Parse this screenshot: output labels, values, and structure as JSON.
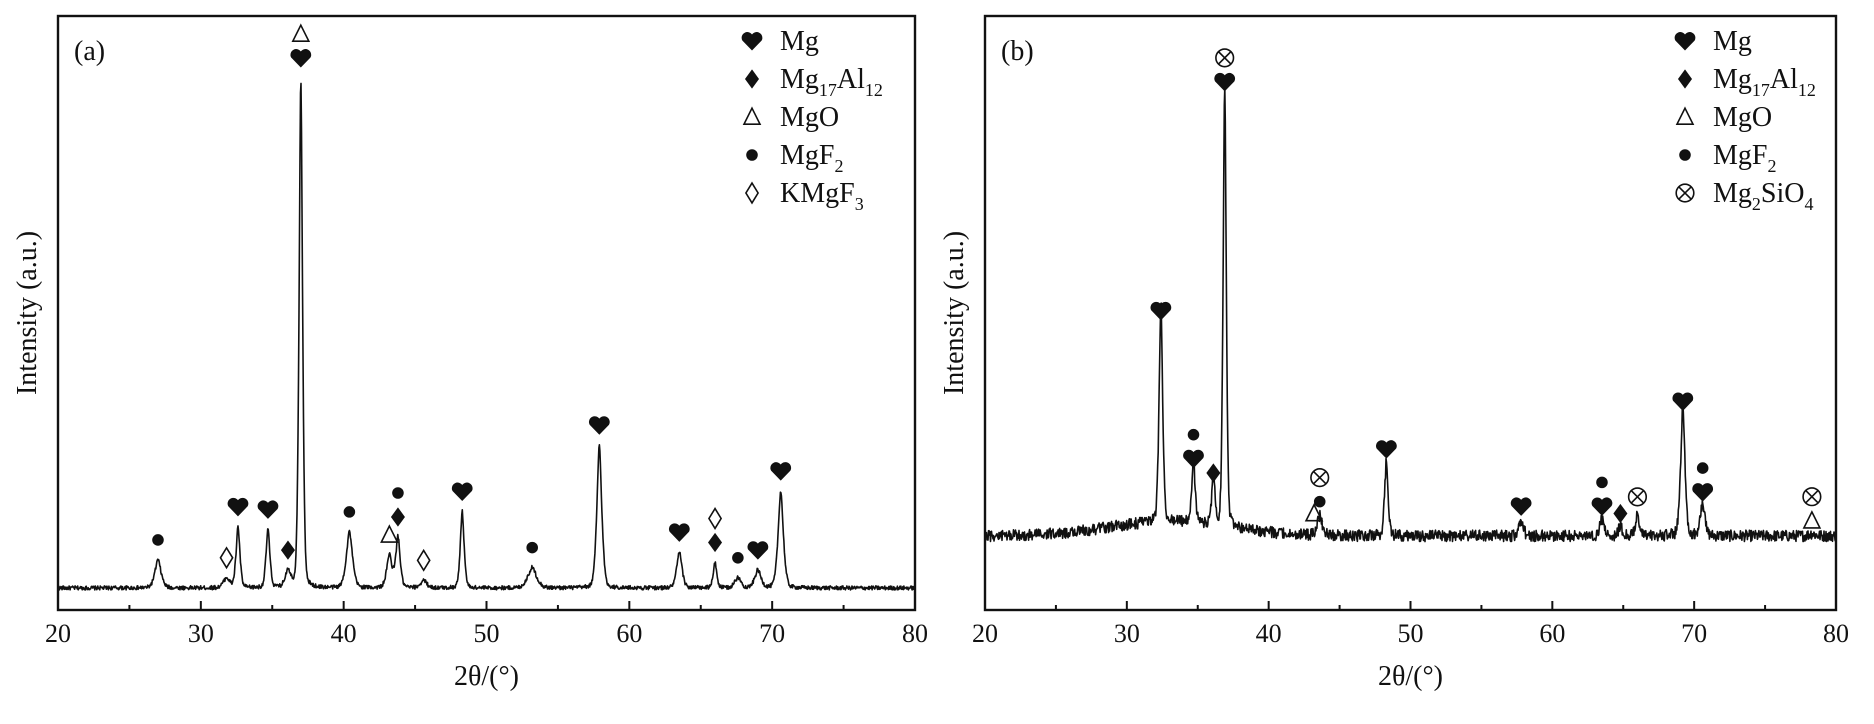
{
  "colors": {
    "line": "#111111",
    "background": "#ffffff"
  },
  "chart_data": [
    {
      "type": "line",
      "panel_label": "(a)",
      "xlabel": "2θ/(°)",
      "ylabel": "Intensity (a.u.)",
      "xlim": [
        20,
        80
      ],
      "xticks": [
        20,
        30,
        40,
        50,
        60,
        70,
        80
      ],
      "y_units": "relative intensity (arbitrary, baseline 0, tallest peak 1)",
      "grid": false,
      "legend_position": "top-right",
      "legend": [
        {
          "symbol": "heart",
          "label": "Mg"
        },
        {
          "symbol": "diamond",
          "label": "Mg17Al12"
        },
        {
          "symbol": "triangle",
          "label": "MgO"
        },
        {
          "symbol": "circle",
          "label": "MgF2"
        },
        {
          "symbol": "open-diamond",
          "label": "KMgF3"
        }
      ],
      "baseline": 0.0,
      "noise": 0.004,
      "peaks": [
        {
          "x": 27.0,
          "y": 0.055,
          "w": 0.35
        },
        {
          "x": 31.8,
          "y": 0.02,
          "w": 0.35
        },
        {
          "x": 32.6,
          "y": 0.12,
          "w": 0.22
        },
        {
          "x": 34.7,
          "y": 0.115,
          "w": 0.22
        },
        {
          "x": 36.1,
          "y": 0.035,
          "w": 0.3
        },
        {
          "x": 37.0,
          "y": 1.0,
          "w": 0.2
        },
        {
          "x": 40.4,
          "y": 0.11,
          "w": 0.35
        },
        {
          "x": 43.2,
          "y": 0.065,
          "w": 0.3
        },
        {
          "x": 43.8,
          "y": 0.1,
          "w": 0.25
        },
        {
          "x": 45.6,
          "y": 0.015,
          "w": 0.35
        },
        {
          "x": 48.3,
          "y": 0.15,
          "w": 0.22
        },
        {
          "x": 53.2,
          "y": 0.04,
          "w": 0.5
        },
        {
          "x": 57.9,
          "y": 0.28,
          "w": 0.28
        },
        {
          "x": 63.5,
          "y": 0.07,
          "w": 0.3
        },
        {
          "x": 66.0,
          "y": 0.05,
          "w": 0.2
        },
        {
          "x": 67.6,
          "y": 0.02,
          "w": 0.35
        },
        {
          "x": 69.0,
          "y": 0.035,
          "w": 0.35
        },
        {
          "x": 70.6,
          "y": 0.19,
          "w": 0.3
        }
      ],
      "peak_markers": [
        {
          "x": 27.0,
          "y": 0.055,
          "symbols": [
            "circle"
          ]
        },
        {
          "x": 31.8,
          "y": 0.02,
          "symbols": [
            "open-diamond"
          ]
        },
        {
          "x": 32.6,
          "y": 0.12,
          "symbols": [
            "heart"
          ]
        },
        {
          "x": 34.7,
          "y": 0.115,
          "symbols": [
            "heart"
          ]
        },
        {
          "x": 36.1,
          "y": 0.035,
          "symbols": [
            "diamond"
          ]
        },
        {
          "x": 37.0,
          "y": 1.0,
          "symbols": [
            "heart",
            "triangle"
          ]
        },
        {
          "x": 40.4,
          "y": 0.11,
          "symbols": [
            "circle"
          ]
        },
        {
          "x": 43.2,
          "y": 0.065,
          "symbols": [
            "triangle"
          ]
        },
        {
          "x": 43.8,
          "y": 0.1,
          "symbols": [
            "diamond",
            "circle"
          ]
        },
        {
          "x": 45.6,
          "y": 0.015,
          "symbols": [
            "open-diamond"
          ]
        },
        {
          "x": 48.3,
          "y": 0.15,
          "symbols": [
            "heart"
          ]
        },
        {
          "x": 53.2,
          "y": 0.04,
          "symbols": [
            "circle"
          ]
        },
        {
          "x": 57.9,
          "y": 0.28,
          "symbols": [
            "heart"
          ]
        },
        {
          "x": 63.5,
          "y": 0.07,
          "symbols": [
            "heart"
          ]
        },
        {
          "x": 66.0,
          "y": 0.05,
          "symbols": [
            "diamond",
            "open-diamond"
          ]
        },
        {
          "x": 67.6,
          "y": 0.02,
          "symbols": [
            "circle"
          ]
        },
        {
          "x": 69.0,
          "y": 0.035,
          "symbols": [
            "heart"
          ]
        },
        {
          "x": 70.6,
          "y": 0.19,
          "symbols": [
            "heart"
          ]
        }
      ]
    },
    {
      "type": "line",
      "panel_label": "(b)",
      "xlabel": "2θ/(°)",
      "ylabel": "Intensity (a.u.)",
      "xlim": [
        20,
        80
      ],
      "xticks": [
        20,
        30,
        40,
        50,
        60,
        70,
        80
      ],
      "y_units": "relative intensity (arbitrary, baseline 0, tallest peak 1)",
      "grid": false,
      "legend_position": "top-right",
      "legend": [
        {
          "symbol": "heart",
          "label": "Mg"
        },
        {
          "symbol": "diamond",
          "label": "Mg17Al12"
        },
        {
          "symbol": "triangle",
          "label": "MgO"
        },
        {
          "symbol": "circle",
          "label": "MgF2"
        },
        {
          "symbol": "otimes",
          "label": "Mg2SiO4"
        }
      ],
      "baseline": 0.04,
      "noise": 0.012,
      "hump": {
        "x": 33.0,
        "y": 0.03,
        "w": 6.0
      },
      "peaks": [
        {
          "x": 32.4,
          "y": 0.46,
          "w": 0.2
        },
        {
          "x": 34.7,
          "y": 0.14,
          "w": 0.18
        },
        {
          "x": 36.1,
          "y": 0.12,
          "w": 0.16
        },
        {
          "x": 36.9,
          "y": 0.93,
          "w": 0.18
        },
        {
          "x": 43.6,
          "y": 0.04,
          "w": 0.3
        },
        {
          "x": 48.3,
          "y": 0.16,
          "w": 0.2
        },
        {
          "x": 57.8,
          "y": 0.035,
          "w": 0.25
        },
        {
          "x": 63.5,
          "y": 0.035,
          "w": 0.25
        },
        {
          "x": 64.8,
          "y": 0.02,
          "w": 0.25
        },
        {
          "x": 66.0,
          "y": 0.05,
          "w": 0.2
        },
        {
          "x": 69.2,
          "y": 0.27,
          "w": 0.25
        },
        {
          "x": 70.6,
          "y": 0.07,
          "w": 0.25
        },
        {
          "x": 78.3,
          "y": 0.005,
          "w": 0.35
        }
      ],
      "peak_markers": [
        {
          "x": 32.4,
          "y": 0.47,
          "symbols": [
            "heart"
          ]
        },
        {
          "x": 34.7,
          "y": 0.16,
          "symbols": [
            "heart",
            "circle"
          ]
        },
        {
          "x": 36.1,
          "y": 0.13,
          "symbols": [
            "diamond"
          ]
        },
        {
          "x": 36.9,
          "y": 0.95,
          "symbols": [
            "heart",
            "otimes"
          ]
        },
        {
          "x": 43.2,
          "y": 0.045,
          "symbols": [
            "triangle"
          ]
        },
        {
          "x": 43.6,
          "y": 0.07,
          "symbols": [
            "circle",
            "otimes"
          ]
        },
        {
          "x": 48.3,
          "y": 0.18,
          "symbols": [
            "heart"
          ]
        },
        {
          "x": 57.8,
          "y": 0.06,
          "symbols": [
            "heart"
          ]
        },
        {
          "x": 63.5,
          "y": 0.06,
          "symbols": [
            "heart",
            "circle"
          ]
        },
        {
          "x": 64.8,
          "y": 0.045,
          "symbols": [
            "diamond"
          ]
        },
        {
          "x": 66.0,
          "y": 0.08,
          "symbols": [
            "otimes"
          ]
        },
        {
          "x": 69.2,
          "y": 0.28,
          "symbols": [
            "heart"
          ]
        },
        {
          "x": 70.6,
          "y": 0.09,
          "symbols": [
            "heart",
            "circle"
          ]
        },
        {
          "x": 78.3,
          "y": 0.03,
          "symbols": [
            "triangle",
            "otimes"
          ]
        }
      ]
    }
  ]
}
